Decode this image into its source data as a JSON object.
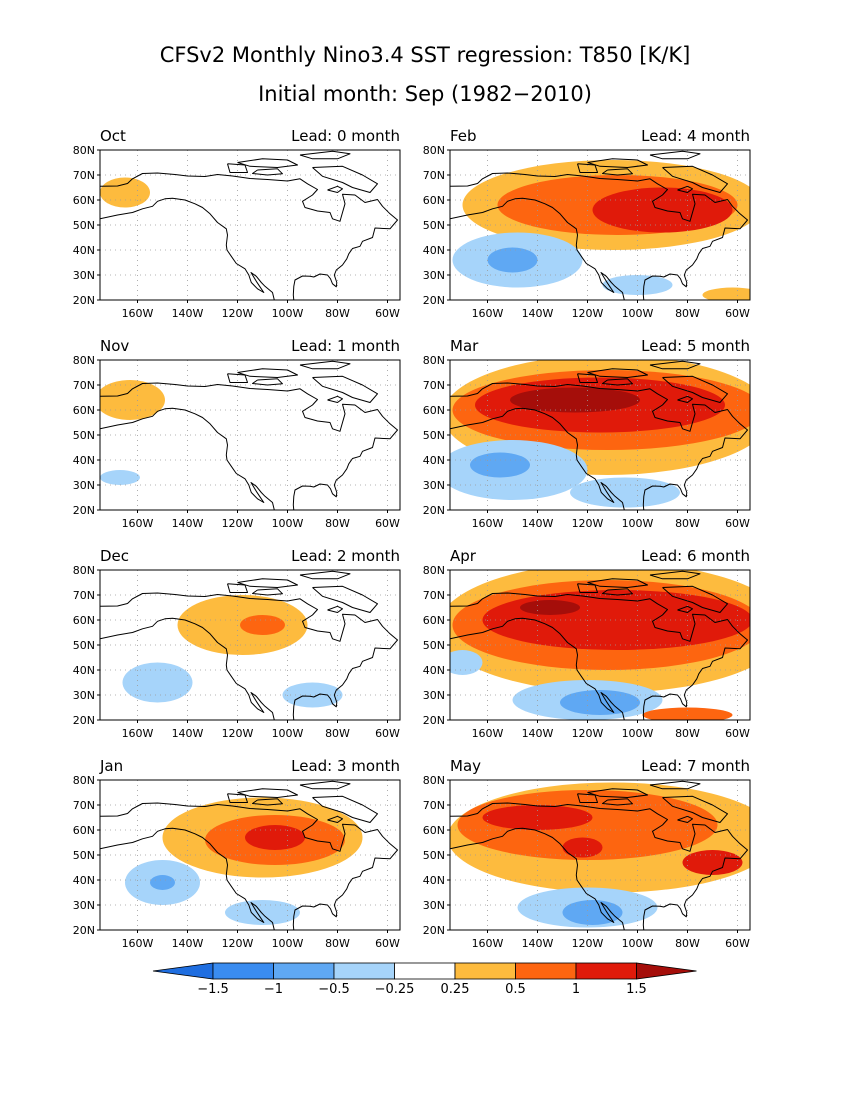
{
  "title": {
    "line1": "CFSv2 Monthly Nino3.4 SST regression: T850 [K/K]",
    "line2": "Initial month: Sep (1982−2010)"
  },
  "axes": {
    "lat_labels": [
      "80N",
      "70N",
      "60N",
      "50N",
      "40N",
      "30N",
      "20N"
    ],
    "lat_values": [
      80,
      70,
      60,
      50,
      40,
      30,
      20
    ],
    "lon_labels": [
      "160W",
      "140W",
      "120W",
      "100W",
      "80W",
      "60W"
    ],
    "lon_values": [
      -160,
      -140,
      -120,
      -100,
      -80,
      -60
    ],
    "lon_range": [
      -175,
      -55
    ],
    "lat_range": [
      20,
      80
    ]
  },
  "colors": {
    "-1.5": "#1f6ee0",
    "-1": "#3a8cf0",
    "-0.5": "#5fa8f3",
    "-0.25": "#a6d4fa",
    "0.25": "#fdbb3e",
    "0.5": "#fd6510",
    "1": "#e01a0a",
    "1.5": "#a50e0a"
  },
  "chart_data": {
    "type": "heatmap",
    "units": "K/K",
    "panels": [
      {
        "month": "Oct",
        "lead_label": "Lead: 0 month",
        "features": [
          {
            "level": 0.25,
            "lon": -165,
            "lat": 63,
            "rlon": 10,
            "rlat": 6
          }
        ]
      },
      {
        "month": "Feb",
        "lead_label": "Lead: 4 month",
        "features": [
          {
            "level": 0.25,
            "lon": -110,
            "lat": 58,
            "rlon": 60,
            "rlat": 18
          },
          {
            "level": 0.5,
            "lon": -108,
            "lat": 58,
            "rlon": 48,
            "rlat": 12
          },
          {
            "level": 1,
            "lon": -90,
            "lat": 56,
            "rlon": 28,
            "rlat": 9
          },
          {
            "level": 0.25,
            "lon": -62,
            "lat": 22,
            "rlon": 12,
            "rlat": 3
          },
          {
            "level": -0.25,
            "lon": -148,
            "lat": 36,
            "rlon": 26,
            "rlat": 11
          },
          {
            "level": -0.5,
            "lon": -150,
            "lat": 36,
            "rlon": 10,
            "rlat": 5
          },
          {
            "level": -0.25,
            "lon": -100,
            "lat": 26,
            "rlon": 14,
            "rlat": 4
          }
        ]
      },
      {
        "month": "Nov",
        "lead_label": "Lead: 1 month",
        "features": [
          {
            "level": 0.25,
            "lon": -163,
            "lat": 64,
            "rlon": 14,
            "rlat": 8
          },
          {
            "level": -0.25,
            "lon": -167,
            "lat": 33,
            "rlon": 8,
            "rlat": 3
          }
        ]
      },
      {
        "month": "Mar",
        "lead_label": "Lead: 5 month",
        "features": [
          {
            "level": 0.25,
            "lon": -112,
            "lat": 58,
            "rlon": 66,
            "rlat": 24
          },
          {
            "level": 0.5,
            "lon": -112,
            "lat": 60,
            "rlon": 62,
            "rlat": 16
          },
          {
            "level": 1,
            "lon": -115,
            "lat": 62,
            "rlon": 50,
            "rlat": 11
          },
          {
            "level": 1.5,
            "lon": -125,
            "lat": 64,
            "rlon": 26,
            "rlat": 5
          },
          {
            "level": -0.25,
            "lon": -150,
            "lat": 36,
            "rlon": 30,
            "rlat": 12
          },
          {
            "level": -0.5,
            "lon": -155,
            "lat": 38,
            "rlon": 12,
            "rlat": 5
          },
          {
            "level": -0.25,
            "lon": -105,
            "lat": 27,
            "rlon": 22,
            "rlat": 6
          }
        ]
      },
      {
        "month": "Dec",
        "lead_label": "Lead: 2 month",
        "features": [
          {
            "level": 0.25,
            "lon": -118,
            "lat": 58,
            "rlon": 26,
            "rlat": 12
          },
          {
            "level": 0.5,
            "lon": -110,
            "lat": 58,
            "rlon": 9,
            "rlat": 4
          },
          {
            "level": -0.25,
            "lon": -152,
            "lat": 35,
            "rlon": 14,
            "rlat": 8
          },
          {
            "level": -0.25,
            "lon": -90,
            "lat": 30,
            "rlon": 12,
            "rlat": 5
          }
        ]
      },
      {
        "month": "Apr",
        "lead_label": "Lead: 6 month",
        "features": [
          {
            "level": 0.25,
            "lon": -110,
            "lat": 57,
            "rlon": 70,
            "rlat": 26
          },
          {
            "level": 0.5,
            "lon": -112,
            "lat": 58,
            "rlon": 62,
            "rlat": 18
          },
          {
            "level": 1,
            "lon": -108,
            "lat": 60,
            "rlon": 54,
            "rlat": 12
          },
          {
            "level": 1.5,
            "lon": -135,
            "lat": 65,
            "rlon": 12,
            "rlat": 3
          },
          {
            "level": -0.25,
            "lon": -120,
            "lat": 28,
            "rlon": 30,
            "rlat": 8
          },
          {
            "level": -0.5,
            "lon": -115,
            "lat": 27,
            "rlon": 16,
            "rlat": 5
          },
          {
            "level": -0.25,
            "lon": -170,
            "lat": 43,
            "rlon": 8,
            "rlat": 5
          },
          {
            "level": 0.5,
            "lon": -80,
            "lat": 22,
            "rlon": 18,
            "rlat": 3
          }
        ]
      },
      {
        "month": "Jan",
        "lead_label": "Lead: 3 month",
        "features": [
          {
            "level": 0.25,
            "lon": -110,
            "lat": 57,
            "rlon": 40,
            "rlat": 16
          },
          {
            "level": 0.5,
            "lon": -105,
            "lat": 56,
            "rlon": 28,
            "rlat": 10
          },
          {
            "level": 1,
            "lon": -105,
            "lat": 57,
            "rlon": 12,
            "rlat": 5
          },
          {
            "level": -0.25,
            "lon": -150,
            "lat": 39,
            "rlon": 15,
            "rlat": 9
          },
          {
            "level": -0.5,
            "lon": -150,
            "lat": 39,
            "rlon": 5,
            "rlat": 3
          },
          {
            "level": -0.25,
            "lon": -110,
            "lat": 27,
            "rlon": 15,
            "rlat": 5
          }
        ]
      },
      {
        "month": "May",
        "lead_label": "Lead: 7 month",
        "features": [
          {
            "level": 0.25,
            "lon": -110,
            "lat": 57,
            "rlon": 66,
            "rlat": 22
          },
          {
            "level": 0.5,
            "lon": -120,
            "lat": 62,
            "rlon": 52,
            "rlat": 14
          },
          {
            "level": 1,
            "lon": -140,
            "lat": 65,
            "rlon": 22,
            "rlat": 5
          },
          {
            "level": 1,
            "lon": -122,
            "lat": 53,
            "rlon": 8,
            "rlat": 4
          },
          {
            "level": 1,
            "lon": -70,
            "lat": 47,
            "rlon": 12,
            "rlat": 5
          },
          {
            "level": -0.25,
            "lon": -120,
            "lat": 29,
            "rlon": 28,
            "rlat": 8
          },
          {
            "level": -0.5,
            "lon": -118,
            "lat": 27,
            "rlon": 12,
            "rlat": 5
          }
        ]
      }
    ]
  },
  "colorbar": {
    "levels": [
      -1.5,
      -1,
      -0.5,
      -0.25,
      0.25,
      0.5,
      1,
      1.5
    ],
    "labels": [
      "−1.5",
      "−1",
      "−0.5",
      "−0.25",
      "0.25",
      "0.5",
      "1",
      "1.5"
    ],
    "fill_colors": [
      "#1f6ee0",
      "#3a8cf0",
      "#5fa8f3",
      "#a6d4fa",
      "#ffffff",
      "#fdbb3e",
      "#fd6510",
      "#e01a0a",
      "#a50e0a"
    ]
  }
}
